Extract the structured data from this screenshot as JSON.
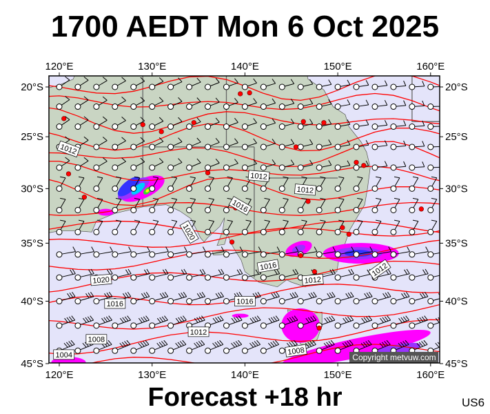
{
  "title": "1700 AEDT Mon 6 Oct 2025",
  "footer": "Forecast +18 hr",
  "model_code": "US6",
  "copyright": "Copyright metvuw.com",
  "axes": {
    "longitude_labels": [
      "120°E",
      "130°E",
      "140°E",
      "150°E",
      "160°E"
    ],
    "latitude_labels": [
      "20°S",
      "25°S",
      "30°S",
      "35°S",
      "40°S",
      "45°S"
    ]
  },
  "isobar_labels": [
    "1012",
    "1012",
    "1012",
    "1016",
    "1020",
    "1016",
    "1012",
    "1012",
    "1020",
    "1016",
    "1012",
    "1008",
    "1004",
    "1008",
    "1016"
  ],
  "colors": {
    "sea": "#e4e4fa",
    "land": "#c9d5c3",
    "isobar": "#ff0000",
    "rain_light": "#ff00ff",
    "rain_moderate": "#9933ff",
    "rain_heavy": "#3333ff",
    "rain_very_heavy": "#00ccff",
    "rain_extreme": "#33dd33",
    "rain_max": "#ffff00"
  }
}
